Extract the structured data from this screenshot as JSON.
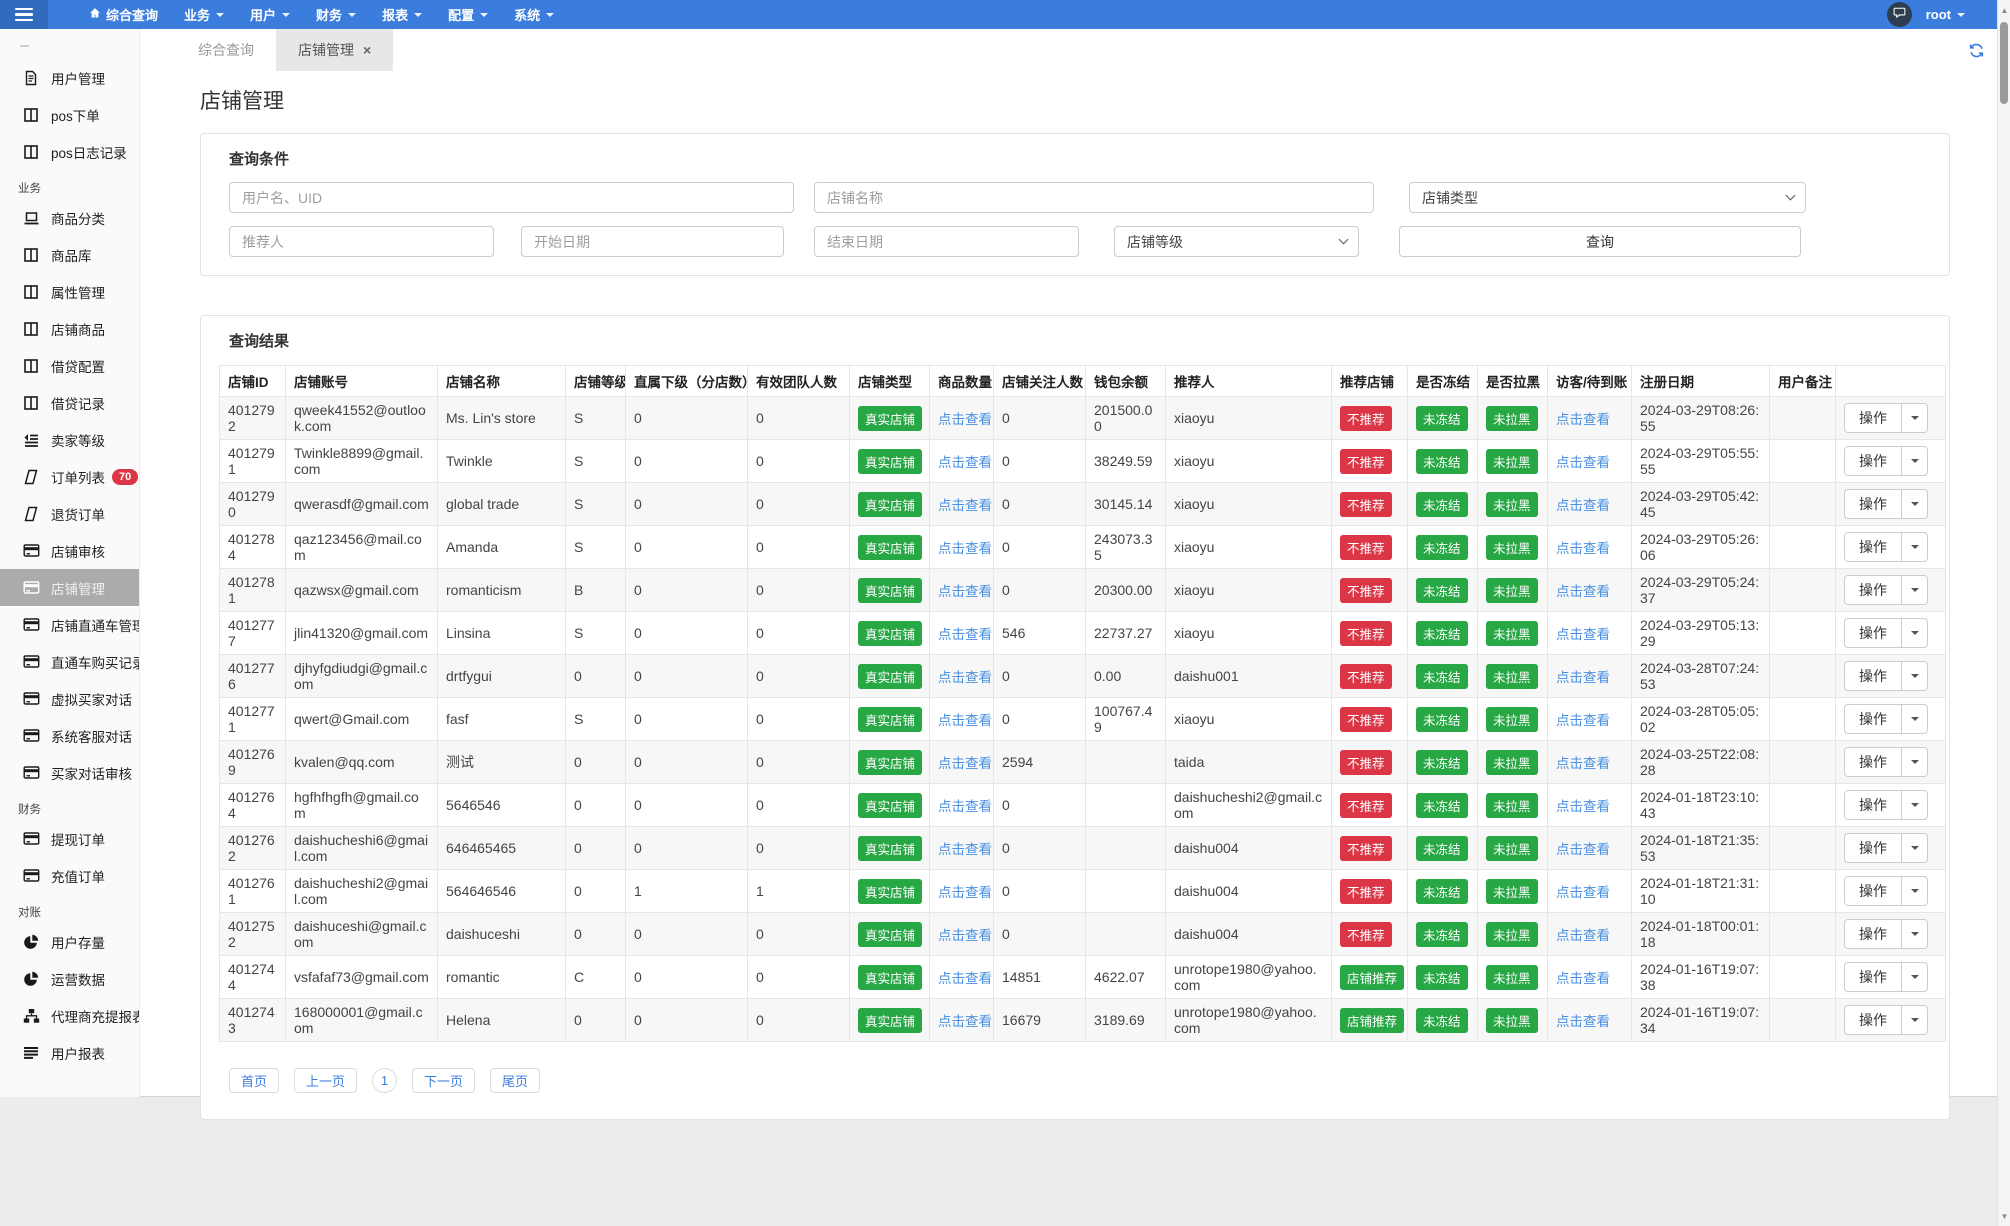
{
  "colors": {
    "navbar": "#3b7ddd",
    "badge_green": "#28a745",
    "badge_red": "#dc3545",
    "link": "#4a90e2",
    "active_sidebar": "#ababab"
  },
  "navbar": {
    "menu_items": [
      {
        "label": "综合查询",
        "icon": "home-icon",
        "caret": false
      },
      {
        "label": "业务",
        "caret": true
      },
      {
        "label": "用户",
        "caret": true
      },
      {
        "label": "财务",
        "caret": true
      },
      {
        "label": "报表",
        "caret": true
      },
      {
        "label": "配置",
        "caret": true
      },
      {
        "label": "系统",
        "caret": true
      }
    ],
    "user": "root"
  },
  "sidebar": {
    "groups": [
      {
        "header": "",
        "items": [
          {
            "label": "用户管理",
            "icon": "file-icon"
          },
          {
            "label": "pos下单",
            "icon": "table-icon"
          },
          {
            "label": "pos日志记录",
            "icon": "table-icon"
          }
        ]
      },
      {
        "header": "业务",
        "items": [
          {
            "label": "商品分类",
            "icon": "laptop-icon"
          },
          {
            "label": "商品库",
            "icon": "table-icon"
          },
          {
            "label": "属性管理",
            "icon": "table-icon"
          },
          {
            "label": "店铺商品",
            "icon": "table-icon"
          },
          {
            "label": "借贷配置",
            "icon": "table-icon"
          },
          {
            "label": "借贷记录",
            "icon": "table-icon"
          },
          {
            "label": "卖家等级",
            "icon": "indent-icon"
          },
          {
            "label": "订单列表",
            "icon": "order-icon",
            "badge": "70"
          },
          {
            "label": "退货订单",
            "icon": "order-icon"
          },
          {
            "label": "店铺审核",
            "icon": "card-icon"
          },
          {
            "label": "店铺管理",
            "icon": "card-icon",
            "active": true
          },
          {
            "label": "店铺直通车管理",
            "icon": "card-icon"
          },
          {
            "label": "直通车购买记录",
            "icon": "card-icon"
          },
          {
            "label": "虚拟买家对话",
            "icon": "card-icon"
          },
          {
            "label": "系统客服对话",
            "icon": "card-icon"
          },
          {
            "label": "买家对话审核",
            "icon": "card-icon"
          }
        ]
      },
      {
        "header": "财务",
        "items": [
          {
            "label": "提现订单",
            "icon": "card-icon"
          },
          {
            "label": "充值订单",
            "icon": "card-icon"
          }
        ]
      },
      {
        "header": "对账",
        "items": [
          {
            "label": "用户存量",
            "icon": "pie-icon"
          },
          {
            "label": "运营数据",
            "icon": "pie-icon"
          },
          {
            "label": "代理商充提报表",
            "icon": "sitemap-icon"
          },
          {
            "label": "用户报表",
            "icon": "lines-icon"
          }
        ]
      }
    ]
  },
  "tabs": [
    {
      "label": "综合查询",
      "active": false,
      "closable": false
    },
    {
      "label": "店铺管理",
      "active": true,
      "closable": true
    }
  ],
  "page": {
    "title": "店铺管理"
  },
  "filter": {
    "title": "查询条件",
    "username_placeholder": "用户名、UID",
    "shop_name_placeholder": "店铺名称",
    "shop_type_placeholder": "店铺类型",
    "referrer_placeholder": "推荐人",
    "start_date_placeholder": "开始日期",
    "end_date_placeholder": "结束日期",
    "shop_level_placeholder": "店铺等级",
    "search_label": "查询"
  },
  "results": {
    "title": "查询结果",
    "columns": [
      "店铺ID",
      "店铺账号",
      "店铺名称",
      "店铺等级",
      "直属下级（分店数）",
      "有效团队人数",
      "店铺类型",
      "商品数量",
      "店铺关注人数",
      "钱包余额",
      "推荐人",
      "推荐店铺",
      "是否冻结",
      "是否拉黑",
      "访客/待到账",
      "注册日期",
      "用户备注",
      ""
    ],
    "click_view_label": "点击查看",
    "action_label": "操作",
    "rows": [
      {
        "id": "4012792",
        "account": "qweek41552@outlook.com",
        "name": "Ms. Lin's store",
        "level": "S",
        "direct_sub": "0",
        "team": "0",
        "type": "真实店铺",
        "followers": "0",
        "balance": "201500.00",
        "referrer": "xiaoyu",
        "recommend": {
          "label": "不推荐",
          "color": "red"
        },
        "frozen": "未冻结",
        "blacklist": "未拉黑",
        "reg_date": "2024-03-29T08:26:55",
        "note": ""
      },
      {
        "id": "4012791",
        "account": "Twinkle8899@gmail.com",
        "name": "Twinkle",
        "level": "S",
        "direct_sub": "0",
        "team": "0",
        "type": "真实店铺",
        "followers": "0",
        "balance": "38249.59",
        "referrer": "xiaoyu",
        "recommend": {
          "label": "不推荐",
          "color": "red"
        },
        "frozen": "未冻结",
        "blacklist": "未拉黑",
        "reg_date": "2024-03-29T05:55:55",
        "note": ""
      },
      {
        "id": "4012790",
        "account": "qwerasdf@gmail.com",
        "name": "global trade",
        "level": "S",
        "direct_sub": "0",
        "team": "0",
        "type": "真实店铺",
        "followers": "0",
        "balance": "30145.14",
        "referrer": "xiaoyu",
        "recommend": {
          "label": "不推荐",
          "color": "red"
        },
        "frozen": "未冻结",
        "blacklist": "未拉黑",
        "reg_date": "2024-03-29T05:42:45",
        "note": ""
      },
      {
        "id": "4012784",
        "account": "qaz123456@mail.com",
        "name": "Amanda",
        "level": "S",
        "direct_sub": "0",
        "team": "0",
        "type": "真实店铺",
        "followers": "0",
        "balance": "243073.35",
        "referrer": "xiaoyu",
        "recommend": {
          "label": "不推荐",
          "color": "red"
        },
        "frozen": "未冻结",
        "blacklist": "未拉黑",
        "reg_date": "2024-03-29T05:26:06",
        "note": ""
      },
      {
        "id": "4012781",
        "account": "qazwsx@gmail.com",
        "name": "romanticism",
        "level": "B",
        "direct_sub": "0",
        "team": "0",
        "type": "真实店铺",
        "followers": "0",
        "balance": "20300.00",
        "referrer": "xiaoyu",
        "recommend": {
          "label": "不推荐",
          "color": "red"
        },
        "frozen": "未冻结",
        "blacklist": "未拉黑",
        "reg_date": "2024-03-29T05:24:37",
        "note": ""
      },
      {
        "id": "4012777",
        "account": "jlin41320@gmail.com",
        "name": "Linsina",
        "level": "S",
        "direct_sub": "0",
        "team": "0",
        "type": "真实店铺",
        "followers": "546",
        "balance": "22737.27",
        "referrer": "xiaoyu",
        "recommend": {
          "label": "不推荐",
          "color": "red"
        },
        "frozen": "未冻结",
        "blacklist": "未拉黑",
        "reg_date": "2024-03-29T05:13:29",
        "note": ""
      },
      {
        "id": "4012776",
        "account": "djhyfgdiudgi@gmail.com",
        "name": "drtfygui",
        "level": "0",
        "direct_sub": "0",
        "team": "0",
        "type": "真实店铺",
        "followers": "0",
        "balance": "0.00",
        "referrer": "daishu001",
        "recommend": {
          "label": "不推荐",
          "color": "red"
        },
        "frozen": "未冻结",
        "blacklist": "未拉黑",
        "reg_date": "2024-03-28T07:24:53",
        "note": ""
      },
      {
        "id": "4012771",
        "account": "qwert@Gmail.com",
        "name": "fasf",
        "level": "S",
        "direct_sub": "0",
        "team": "0",
        "type": "真实店铺",
        "followers": "0",
        "balance": "100767.49",
        "referrer": "xiaoyu",
        "recommend": {
          "label": "不推荐",
          "color": "red"
        },
        "frozen": "未冻结",
        "blacklist": "未拉黑",
        "reg_date": "2024-03-28T05:05:02",
        "note": ""
      },
      {
        "id": "4012769",
        "account": "kvalen@qq.com",
        "name": "测试",
        "level": "0",
        "direct_sub": "0",
        "team": "0",
        "type": "真实店铺",
        "followers": "2594",
        "balance": "",
        "referrer": "taida",
        "recommend": {
          "label": "不推荐",
          "color": "red"
        },
        "frozen": "未冻结",
        "blacklist": "未拉黑",
        "reg_date": "2024-03-25T22:08:28",
        "note": ""
      },
      {
        "id": "4012764",
        "account": "hgfhfhgfh@gmail.com",
        "name": "5646546",
        "level": "0",
        "direct_sub": "0",
        "team": "0",
        "type": "真实店铺",
        "followers": "0",
        "balance": "",
        "referrer": "daishucheshi2@gmail.com",
        "recommend": {
          "label": "不推荐",
          "color": "red"
        },
        "frozen": "未冻结",
        "blacklist": "未拉黑",
        "reg_date": "2024-01-18T23:10:43",
        "note": ""
      },
      {
        "id": "4012762",
        "account": "daishucheshi6@gmail.com",
        "name": "646465465",
        "level": "0",
        "direct_sub": "0",
        "team": "0",
        "type": "真实店铺",
        "followers": "0",
        "balance": "",
        "referrer": "daishu004",
        "recommend": {
          "label": "不推荐",
          "color": "red"
        },
        "frozen": "未冻结",
        "blacklist": "未拉黑",
        "reg_date": "2024-01-18T21:35:53",
        "note": ""
      },
      {
        "id": "4012761",
        "account": "daishucheshi2@gmail.com",
        "name": "564646546",
        "level": "0",
        "direct_sub": "1",
        "team": "1",
        "type": "真实店铺",
        "followers": "0",
        "balance": "",
        "referrer": "daishu004",
        "recommend": {
          "label": "不推荐",
          "color": "red"
        },
        "frozen": "未冻结",
        "blacklist": "未拉黑",
        "reg_date": "2024-01-18T21:31:10",
        "note": ""
      },
      {
        "id": "4012752",
        "account": "daishuceshi@gmail.com",
        "name": "daishuceshi",
        "level": "0",
        "direct_sub": "0",
        "team": "0",
        "type": "真实店铺",
        "followers": "0",
        "balance": "",
        "referrer": "daishu004",
        "recommend": {
          "label": "不推荐",
          "color": "red"
        },
        "frozen": "未冻结",
        "blacklist": "未拉黑",
        "reg_date": "2024-01-18T00:01:18",
        "note": ""
      },
      {
        "id": "4012744",
        "account": "vsfafaf73@gmail.com",
        "name": "romantic",
        "level": "C",
        "direct_sub": "0",
        "team": "0",
        "type": "真实店铺",
        "followers": "14851",
        "balance": "4622.07",
        "referrer": "unrotope1980@yahoo.com",
        "recommend": {
          "label": "店铺推荐",
          "color": "green"
        },
        "frozen": "未冻结",
        "blacklist": "未拉黑",
        "reg_date": "2024-01-16T19:07:38",
        "note": ""
      },
      {
        "id": "4012743",
        "account": "168000001@gmail.com",
        "name": "Helena",
        "level": "0",
        "direct_sub": "0",
        "team": "0",
        "type": "真实店铺",
        "followers": "16679",
        "balance": "3189.69",
        "referrer": "unrotope1980@yahoo.com",
        "recommend": {
          "label": "店铺推荐",
          "color": "green"
        },
        "frozen": "未冻结",
        "blacklist": "未拉黑",
        "reg_date": "2024-01-16T19:07:34",
        "note": ""
      }
    ],
    "pagination": [
      {
        "label": "首页",
        "current": false
      },
      {
        "label": "上一页",
        "current": false
      },
      {
        "label": "1",
        "current": true
      },
      {
        "label": "下一页",
        "current": false
      },
      {
        "label": "尾页",
        "current": false
      }
    ]
  }
}
